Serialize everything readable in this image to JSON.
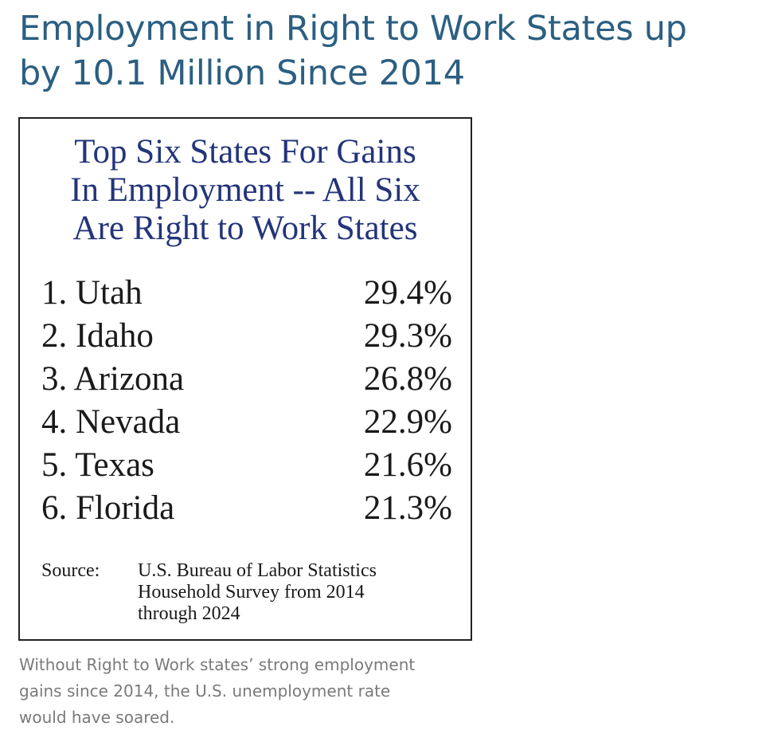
{
  "headline": {
    "line1": "Employment in Right to Work States up",
    "line2": "by 10.1 Million Since 2014"
  },
  "figure": {
    "title_lines": [
      "Top Six States For Gains",
      "In Employment -- All Six",
      "Are Right to Work States"
    ],
    "rows": [
      {
        "label": "1. Utah",
        "value": "29.4%"
      },
      {
        "label": "2. Idaho",
        "value": "29.3%"
      },
      {
        "label": "3. Arizona",
        "value": "26.8%"
      },
      {
        "label": "4. Nevada",
        "value": "22.9%"
      },
      {
        "label": "5. Texas",
        "value": "21.6%"
      },
      {
        "label": "6. Florida",
        "value": "21.3%"
      }
    ],
    "source_label": "Source:",
    "source_lines": [
      "U.S. Bureau of Labor Statistics",
      "Household Survey from 2014",
      "through 2024"
    ]
  },
  "caption_lines": [
    "Without Right to Work states’ strong employment",
    "gains since 2014, the U.S. unemployment rate",
    "would have soared."
  ],
  "colors": {
    "headline": "#2b5f82",
    "figure_title": "#23347a",
    "caption": "#7a7a7a"
  }
}
